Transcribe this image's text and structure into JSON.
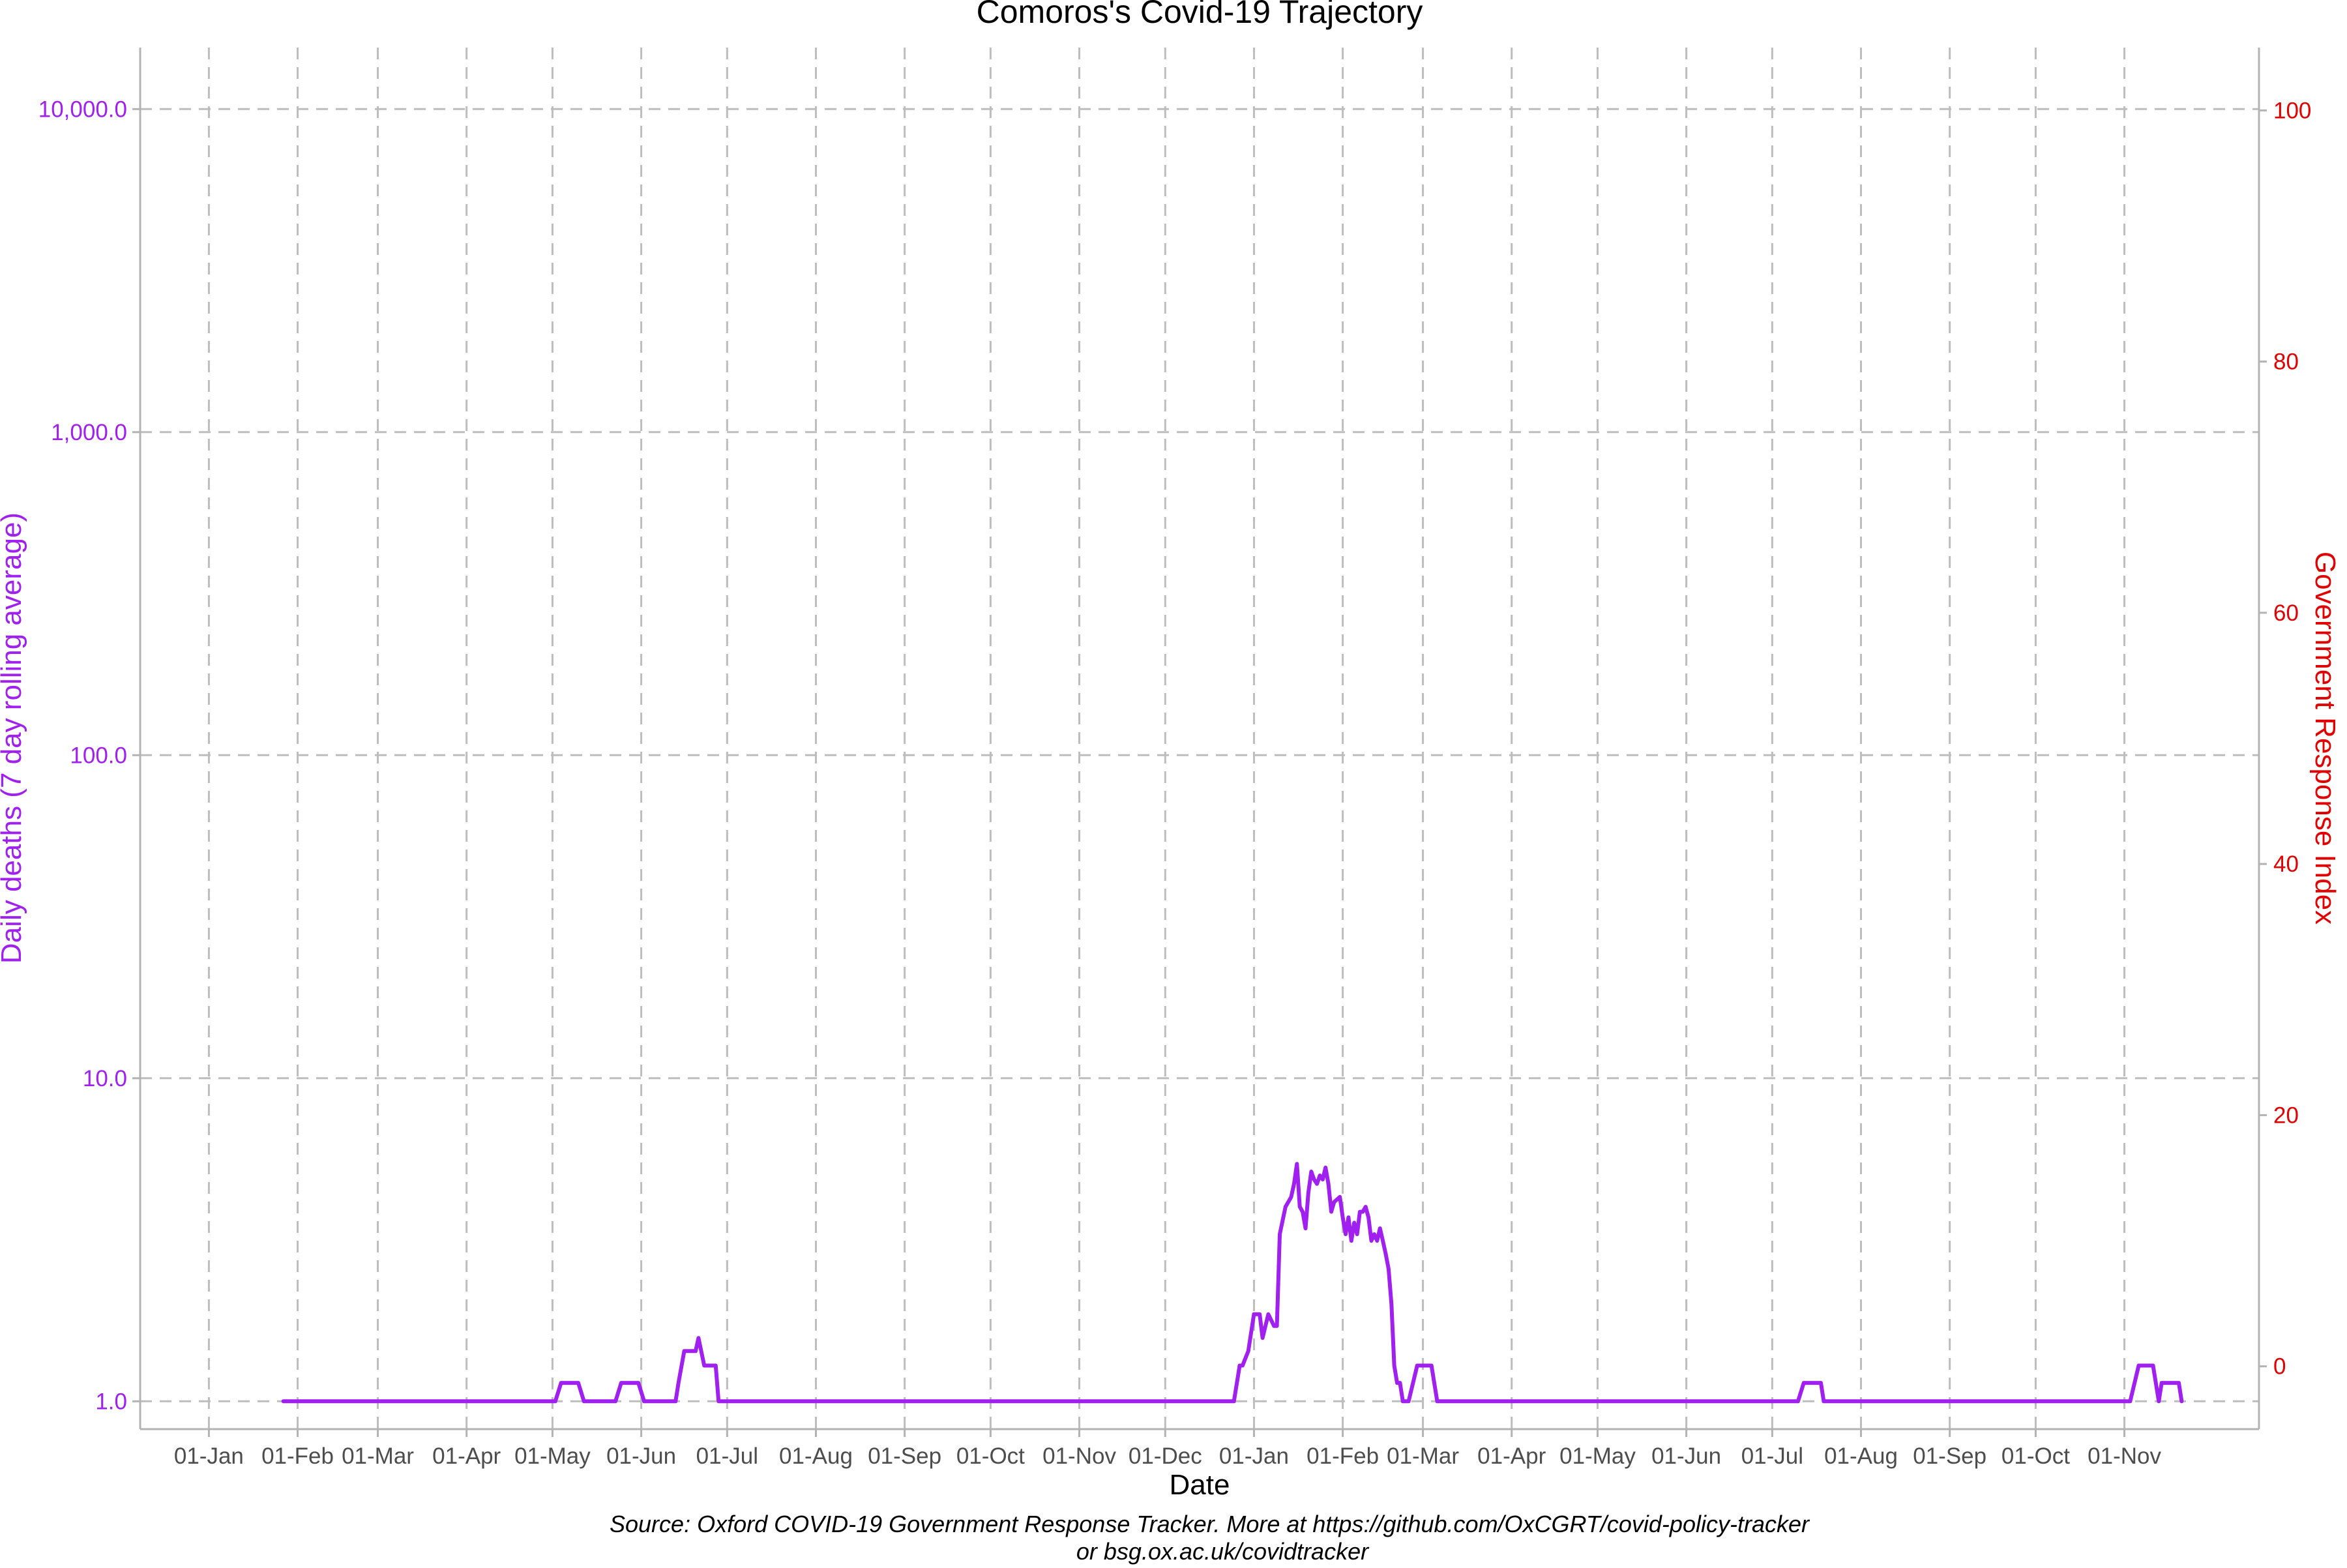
{
  "chart_data": {
    "type": "line",
    "title": "Comoros's Covid-19 Trajectory",
    "xlabel": "Date",
    "ylabel_left": "Daily deaths (7 day rolling average)",
    "ylabel_right": "Government Response Index",
    "y_left_scale": "log10",
    "y_left_lim": [
      0.82,
      15500
    ],
    "y_left_ticks": [
      1,
      10,
      100,
      1000,
      10000
    ],
    "y_left_tick_labels": [
      "1.0",
      "10.0",
      "100.0",
      "1,000.0",
      "10,000.0"
    ],
    "y_right_lim": [
      -5,
      105
    ],
    "y_right_ticks": [
      0,
      20,
      40,
      60,
      80,
      100
    ],
    "y_right_tick_labels": [
      "0",
      "20",
      "40",
      "60",
      "80",
      "100"
    ],
    "x_lim": [
      "2020-12-08",
      "2022-12-18"
    ],
    "x_ticks": [
      "2021-01-01",
      "2021-02-01",
      "2021-03-01",
      "2021-04-01",
      "2021-05-01",
      "2021-06-01",
      "2021-07-01",
      "2021-08-01",
      "2021-09-01",
      "2021-10-01",
      "2021-11-01",
      "2021-12-01",
      "2022-01-01",
      "2022-02-01",
      "2022-03-01",
      "2022-04-01",
      "2022-05-01",
      "2022-06-01",
      "2022-07-01",
      "2022-08-01",
      "2022-09-01",
      "2022-10-01",
      "2022-11-01"
    ],
    "x_tick_labels": [
      "01-Jan",
      "01-Feb",
      "01-Mar",
      "01-Apr",
      "01-May",
      "01-Jun",
      "01-Jul",
      "01-Aug",
      "01-Sep",
      "01-Oct",
      "01-Nov",
      "01-Dec",
      "01-Jan",
      "01-Feb",
      "01-Mar",
      "01-Apr",
      "01-May",
      "01-Jun",
      "01-Jul",
      "01-Aug",
      "01-Sep",
      "01-Oct",
      "01-Nov"
    ],
    "grid": true,
    "series": [
      {
        "axis": "left",
        "color": "#a020f0",
        "points": [
          [
            "2021-01-27",
            1.0
          ],
          [
            "2021-05-02",
            1.0
          ],
          [
            "2021-05-04",
            1.14
          ],
          [
            "2021-05-10",
            1.14
          ],
          [
            "2021-05-12",
            1.0
          ],
          [
            "2021-05-23",
            1.0
          ],
          [
            "2021-05-25",
            1.14
          ],
          [
            "2021-05-31",
            1.14
          ],
          [
            "2021-06-02",
            1.0
          ],
          [
            "2021-06-13",
            1.0
          ],
          [
            "2021-06-14",
            1.14
          ],
          [
            "2021-06-16",
            1.43
          ],
          [
            "2021-06-20",
            1.43
          ],
          [
            "2021-06-21",
            1.57
          ],
          [
            "2021-06-23",
            1.29
          ],
          [
            "2021-06-27",
            1.29
          ],
          [
            "2021-06-28",
            1.0
          ],
          [
            "2021-12-25",
            1.0
          ],
          [
            "2021-12-27",
            1.29
          ],
          [
            "2021-12-28",
            1.29
          ],
          [
            "2021-12-30",
            1.43
          ],
          [
            "2022-01-01",
            1.86
          ],
          [
            "2022-01-03",
            1.86
          ],
          [
            "2022-01-04",
            1.57
          ],
          [
            "2022-01-06",
            1.86
          ],
          [
            "2022-01-08",
            1.71
          ],
          [
            "2022-01-09",
            1.71
          ],
          [
            "2022-01-10",
            3.29
          ],
          [
            "2022-01-12",
            4.0
          ],
          [
            "2022-01-13",
            4.14
          ],
          [
            "2022-01-14",
            4.29
          ],
          [
            "2022-01-15",
            4.71
          ],
          [
            "2022-01-16",
            5.43
          ],
          [
            "2022-01-17",
            4.0
          ],
          [
            "2022-01-18",
            3.86
          ],
          [
            "2022-01-19",
            3.43
          ],
          [
            "2022-01-20",
            4.43
          ],
          [
            "2022-01-21",
            5.14
          ],
          [
            "2022-01-22",
            4.86
          ],
          [
            "2022-01-23",
            4.71
          ],
          [
            "2022-01-24",
            5.0
          ],
          [
            "2022-01-25",
            4.86
          ],
          [
            "2022-01-26",
            5.29
          ],
          [
            "2022-01-27",
            4.71
          ],
          [
            "2022-01-28",
            3.86
          ],
          [
            "2022-01-29",
            4.14
          ],
          [
            "2022-01-31",
            4.29
          ],
          [
            "2022-02-01",
            3.71
          ],
          [
            "2022-02-02",
            3.29
          ],
          [
            "2022-02-03",
            3.71
          ],
          [
            "2022-02-04",
            3.14
          ],
          [
            "2022-02-05",
            3.57
          ],
          [
            "2022-02-06",
            3.29
          ],
          [
            "2022-02-07",
            3.86
          ],
          [
            "2022-02-08",
            3.86
          ],
          [
            "2022-02-09",
            4.0
          ],
          [
            "2022-02-10",
            3.71
          ],
          [
            "2022-02-11",
            3.14
          ],
          [
            "2022-02-12",
            3.29
          ],
          [
            "2022-02-13",
            3.14
          ],
          [
            "2022-02-14",
            3.43
          ],
          [
            "2022-02-15",
            3.14
          ],
          [
            "2022-02-16",
            2.86
          ],
          [
            "2022-02-17",
            2.57
          ],
          [
            "2022-02-18",
            2.0
          ],
          [
            "2022-02-19",
            1.29
          ],
          [
            "2022-02-20",
            1.14
          ],
          [
            "2022-02-21",
            1.14
          ],
          [
            "2022-02-22",
            1.0
          ],
          [
            "2022-02-24",
            1.0
          ],
          [
            "2022-02-27",
            1.29
          ],
          [
            "2022-03-04",
            1.29
          ],
          [
            "2022-03-06",
            1.0
          ],
          [
            "2022-07-10",
            1.0
          ],
          [
            "2022-07-12",
            1.14
          ],
          [
            "2022-07-18",
            1.14
          ],
          [
            "2022-07-19",
            1.0
          ],
          [
            "2022-11-03",
            1.0
          ],
          [
            "2022-11-06",
            1.29
          ],
          [
            "2022-11-11",
            1.29
          ],
          [
            "2022-11-13",
            1.0
          ],
          [
            "2022-11-14",
            1.14
          ],
          [
            "2022-11-20",
            1.14
          ],
          [
            "2022-11-21",
            1.0
          ]
        ]
      }
    ],
    "caption_lines": [
      "Source: Oxford COVID-19 Government Response Tracker. More at https://github.com/OxCGRT/covid-policy-tracker",
      "or bsg.ox.ac.uk/covidtracker"
    ],
    "colors": {
      "deaths": "#a020f0",
      "right_axis": "#e00000",
      "text": "#000000",
      "tick_text": "#4d4d4d"
    }
  }
}
